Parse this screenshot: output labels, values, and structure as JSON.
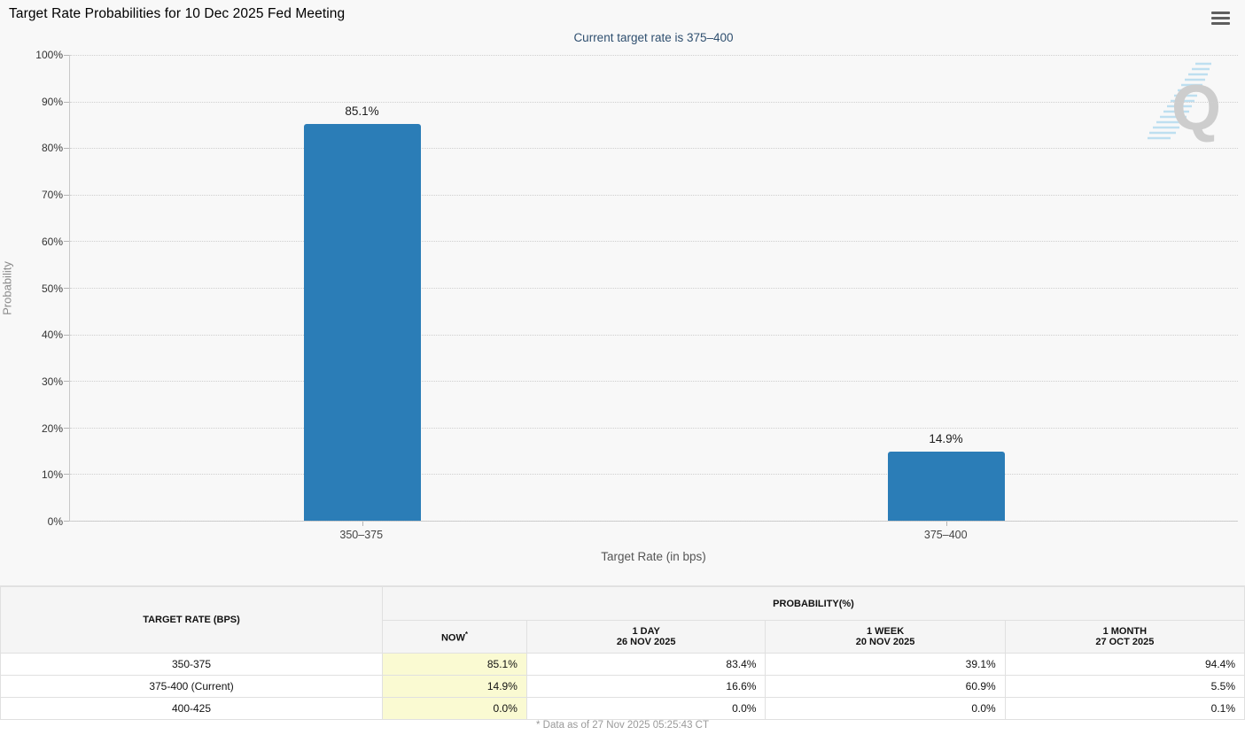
{
  "header": {
    "title": "Target Rate Probabilities for 10 Dec 2025 Fed Meeting"
  },
  "chart": {
    "watermark_letter": "Q"
  },
  "chart_data": {
    "type": "bar",
    "title": "Target Rate Probabilities for 10 Dec 2025 Fed Meeting",
    "subtitle": "Current target rate is 375–400",
    "categories": [
      "350–375",
      "375–400"
    ],
    "values": [
      85.1,
      14.9
    ],
    "value_labels": [
      "85.1%",
      "14.9%"
    ],
    "xlabel": "Target Rate (in bps)",
    "ylabel": "Probability",
    "ylim": [
      0,
      100
    ],
    "ytick_labels": [
      "0%",
      "10%",
      "20%",
      "30%",
      "40%",
      "50%",
      "60%",
      "70%",
      "80%",
      "90%",
      "100%"
    ],
    "grid": "horizontal-dotted",
    "legend": "none",
    "bar_color": "#2b7db7"
  },
  "table": {
    "col1_header": "TARGET RATE (BPS)",
    "group_header": "PROBABILITY(%)",
    "sub_headers": [
      {
        "label": "NOW",
        "sup": "*",
        "date": ""
      },
      {
        "label": "1 DAY",
        "date": "26 NOV 2025"
      },
      {
        "label": "1 WEEK",
        "date": "20 NOV 2025"
      },
      {
        "label": "1 MONTH",
        "date": "27 OCT 2025"
      }
    ],
    "rows": [
      {
        "rate": "350-375",
        "values": [
          "85.1%",
          "83.4%",
          "39.1%",
          "94.4%"
        ]
      },
      {
        "rate": "375-400 (Current)",
        "values": [
          "14.9%",
          "16.6%",
          "60.9%",
          "5.5%"
        ]
      },
      {
        "rate": "400-425",
        "values": [
          "0.0%",
          "0.0%",
          "0.0%",
          "0.1%"
        ]
      }
    ],
    "now_highlight_color": "#fafad2"
  },
  "footer": {
    "note": "* Data as of 27 Nov 2025 05:25:43 CT"
  }
}
